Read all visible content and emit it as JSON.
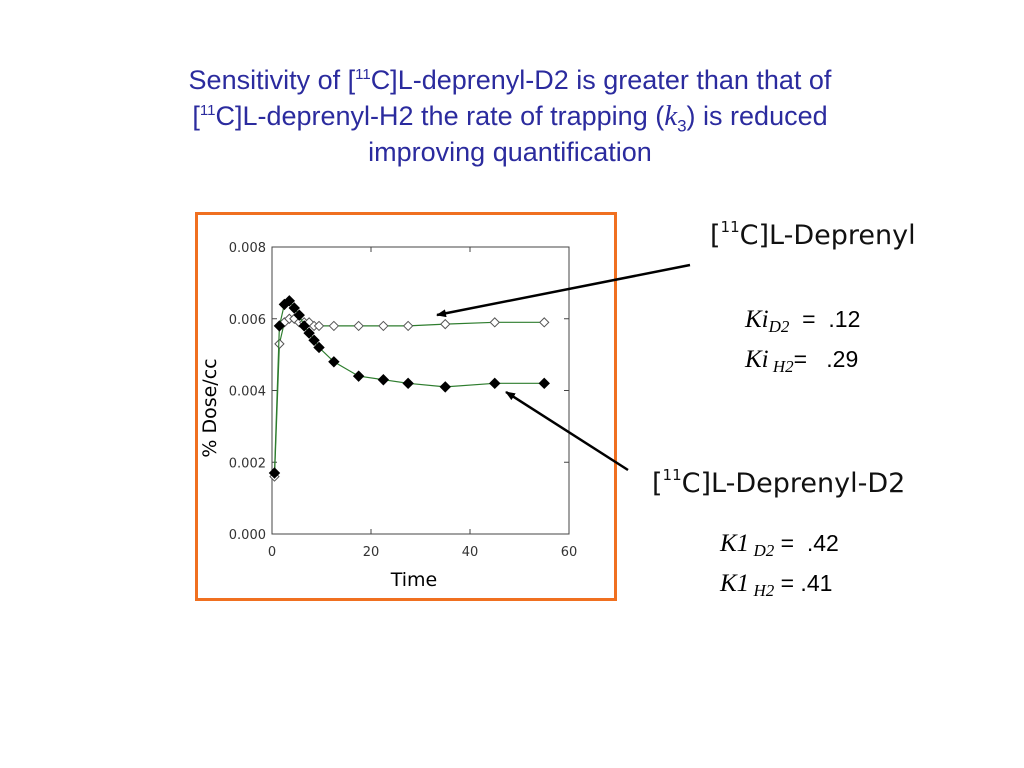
{
  "title": {
    "line1_pre": "Sensitivity of [",
    "line1_sup": "11",
    "line1_post": "C]L-deprenyl-D2  is greater than that of",
    "line2_pre": "[",
    "line2_sup": "11",
    "line2_mid": "C]L-deprenyl-H2 the rate of trapping (",
    "line2_k": "k",
    "line2_ksub": "3",
    "line2_post": ") is reduced",
    "line3": "improving quantification"
  },
  "labels": {
    "deprenyl": {
      "pre": "[",
      "sup": "11",
      "post": "C]L-Deprenyl"
    },
    "deprenyl_d2": {
      "pre": "[",
      "sup": "11",
      "post": "C]L-Deprenyl-D2"
    }
  },
  "params": {
    "ki_d2": {
      "sym": "Ki",
      "sub": "D2",
      "eq": "  =  .12"
    },
    "ki_h2": {
      "sym": "Ki",
      "sub": " H2",
      "eq": "=   .29"
    },
    "k1_d2": {
      "sym": "K1",
      "sub": " D2",
      "eq": " =  .42"
    },
    "k1_h2": {
      "sym": "K1",
      "sub": " H2",
      "eq": " = .41"
    }
  },
  "colors": {
    "title": "#2b2b9e",
    "frame": "#f07020",
    "series_line": "#2e7d2e",
    "arrow": "#000000"
  },
  "chart_data": {
    "type": "line",
    "xlabel": "Time",
    "ylabel": "% Dose/cc",
    "xlim": [
      0,
      60
    ],
    "ylim": [
      0,
      0.008
    ],
    "xticks": [
      "0",
      "20",
      "40",
      "60"
    ],
    "yticks": [
      "0.000",
      "0.002",
      "0.004",
      "0.006",
      "0.008"
    ],
    "series": [
      {
        "name": "[11C]L-Deprenyl",
        "marker": "open-diamond",
        "x": [
          0.5,
          1.5,
          2.5,
          3.5,
          4.5,
          5.5,
          6.5,
          7.5,
          8.5,
          9.5,
          12.5,
          17.5,
          22.5,
          27.5,
          35,
          45,
          55
        ],
        "y": [
          0.0016,
          0.0053,
          0.0059,
          0.006,
          0.006,
          0.0059,
          0.0059,
          0.0059,
          0.0058,
          0.0058,
          0.0058,
          0.0058,
          0.0058,
          0.0058,
          0.00585,
          0.0059,
          0.0059
        ]
      },
      {
        "name": "[11C]L-Deprenyl-D2",
        "marker": "filled-diamond",
        "x": [
          0.5,
          1.5,
          2.5,
          3.5,
          4.5,
          5.5,
          6.5,
          7.5,
          8.5,
          9.5,
          12.5,
          17.5,
          22.5,
          27.5,
          35,
          45,
          55
        ],
        "y": [
          0.0017,
          0.0058,
          0.0064,
          0.0065,
          0.0063,
          0.0061,
          0.0058,
          0.0056,
          0.0054,
          0.0052,
          0.0048,
          0.0044,
          0.0043,
          0.0042,
          0.0041,
          0.0042,
          0.0042
        ]
      }
    ]
  }
}
